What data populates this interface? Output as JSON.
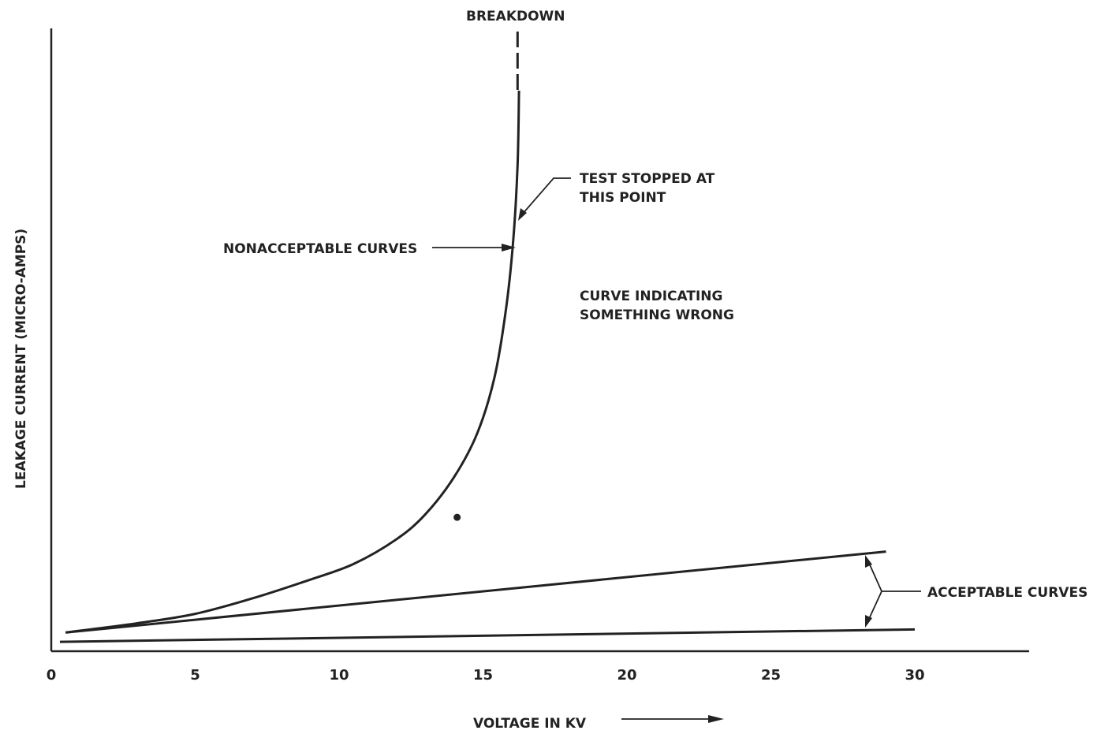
{
  "chart_data": {
    "type": "line",
    "title": "",
    "xlabel": "VOLTAGE IN KV",
    "ylabel": "LEAKAGE CURRENT (MICRO-AMPS)",
    "x_ticks": [
      "0",
      "5",
      "10",
      "15",
      "20",
      "25",
      "30"
    ],
    "xlim": [
      0,
      34
    ],
    "ylim": [
      0,
      100
    ],
    "y_ticks_shown": false,
    "grid": false,
    "series": [
      {
        "group": "nonacceptable",
        "x": [
          0.5,
          3,
          5,
          7,
          9,
          10.5,
          12,
          13,
          14,
          14.8,
          15.4,
          15.8,
          16.05,
          16.2,
          16.25
        ],
        "y": [
          3,
          4.5,
          6,
          8.5,
          11.5,
          14,
          18,
          22,
          28,
          35,
          44,
          55,
          66,
          78,
          90
        ]
      },
      {
        "group": "acceptable",
        "x": [
          0.5,
          29
        ],
        "y": [
          3,
          16
        ]
      },
      {
        "group": "acceptable",
        "x": [
          0.3,
          30
        ],
        "y": [
          1.5,
          3.5
        ]
      }
    ],
    "breakdown_x": 16.2,
    "marker_point": {
      "x": 14.1,
      "y": 21.5
    },
    "annotations": {
      "breakdown": "BREAKDOWN",
      "test_stopped_line1": "TEST STOPPED AT",
      "test_stopped_line2": "THIS POINT",
      "nonacceptable": "NONACCEPTABLE CURVES",
      "something_wrong_line1": "CURVE INDICATING",
      "something_wrong_line2": "SOMETHING WRONG",
      "acceptable": "ACCEPTABLE CURVES"
    }
  }
}
